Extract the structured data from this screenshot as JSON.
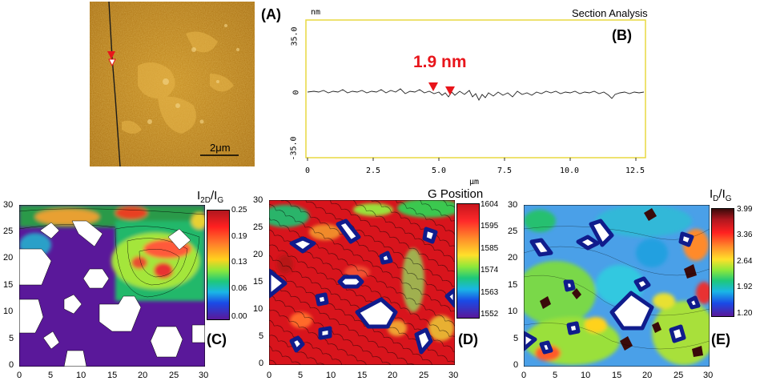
{
  "panels": {
    "A": {
      "label": "(A)",
      "scale_bar": "2μm"
    },
    "B": {
      "label": "(B)",
      "title": "Section Analysis",
      "annotation": "1.9 nm",
      "y_unit": "nm",
      "x_unit": "μm",
      "y_ticks": [
        "35.0",
        "0",
        "-35.0"
      ],
      "x_ticks": [
        "0",
        "2.5",
        "5.0",
        "7.5",
        "10.0",
        "12.5"
      ]
    },
    "C": {
      "label": "(C)",
      "title_main": "I",
      "title_sub1": "2D",
      "title_slash": "/I",
      "title_sub2": "G",
      "cb_ticks": [
        "0.25",
        "0.19",
        "0.13",
        "0.06",
        "0.00"
      ],
      "x_ticks": [
        "0",
        "5",
        "10",
        "15",
        "20",
        "25",
        "30"
      ],
      "y_ticks": [
        "30",
        "25",
        "20",
        "15",
        "10",
        "5",
        "0"
      ]
    },
    "D": {
      "label": "(D)",
      "title": "G Position",
      "cb_ticks": [
        "1604",
        "1595",
        "1585",
        "1574",
        "1563",
        "1552"
      ],
      "x_ticks": [
        "0",
        "5",
        "10",
        "15",
        "20",
        "25",
        "30"
      ],
      "y_ticks": [
        "30",
        "25",
        "20",
        "15",
        "10",
        "5",
        "0"
      ]
    },
    "E": {
      "label": "(E)",
      "title_main": "I",
      "title_sub1": "D",
      "title_slash": "/I",
      "title_sub2": "G",
      "cb_ticks": [
        "3.99",
        "3.36",
        "2.64",
        "1.92",
        "1.20"
      ],
      "x_ticks": [
        "0",
        "5",
        "10",
        "15",
        "20",
        "25",
        "30"
      ],
      "y_ticks": [
        "30",
        "25",
        "20",
        "15",
        "10",
        "5",
        "0"
      ]
    }
  },
  "colors": {
    "afm_base": "#b07a12",
    "annotation_red": "#e8151b",
    "frame_yellow": "#e8d940",
    "hole_blue": "#101c8c",
    "purple": "#5a189a"
  }
}
